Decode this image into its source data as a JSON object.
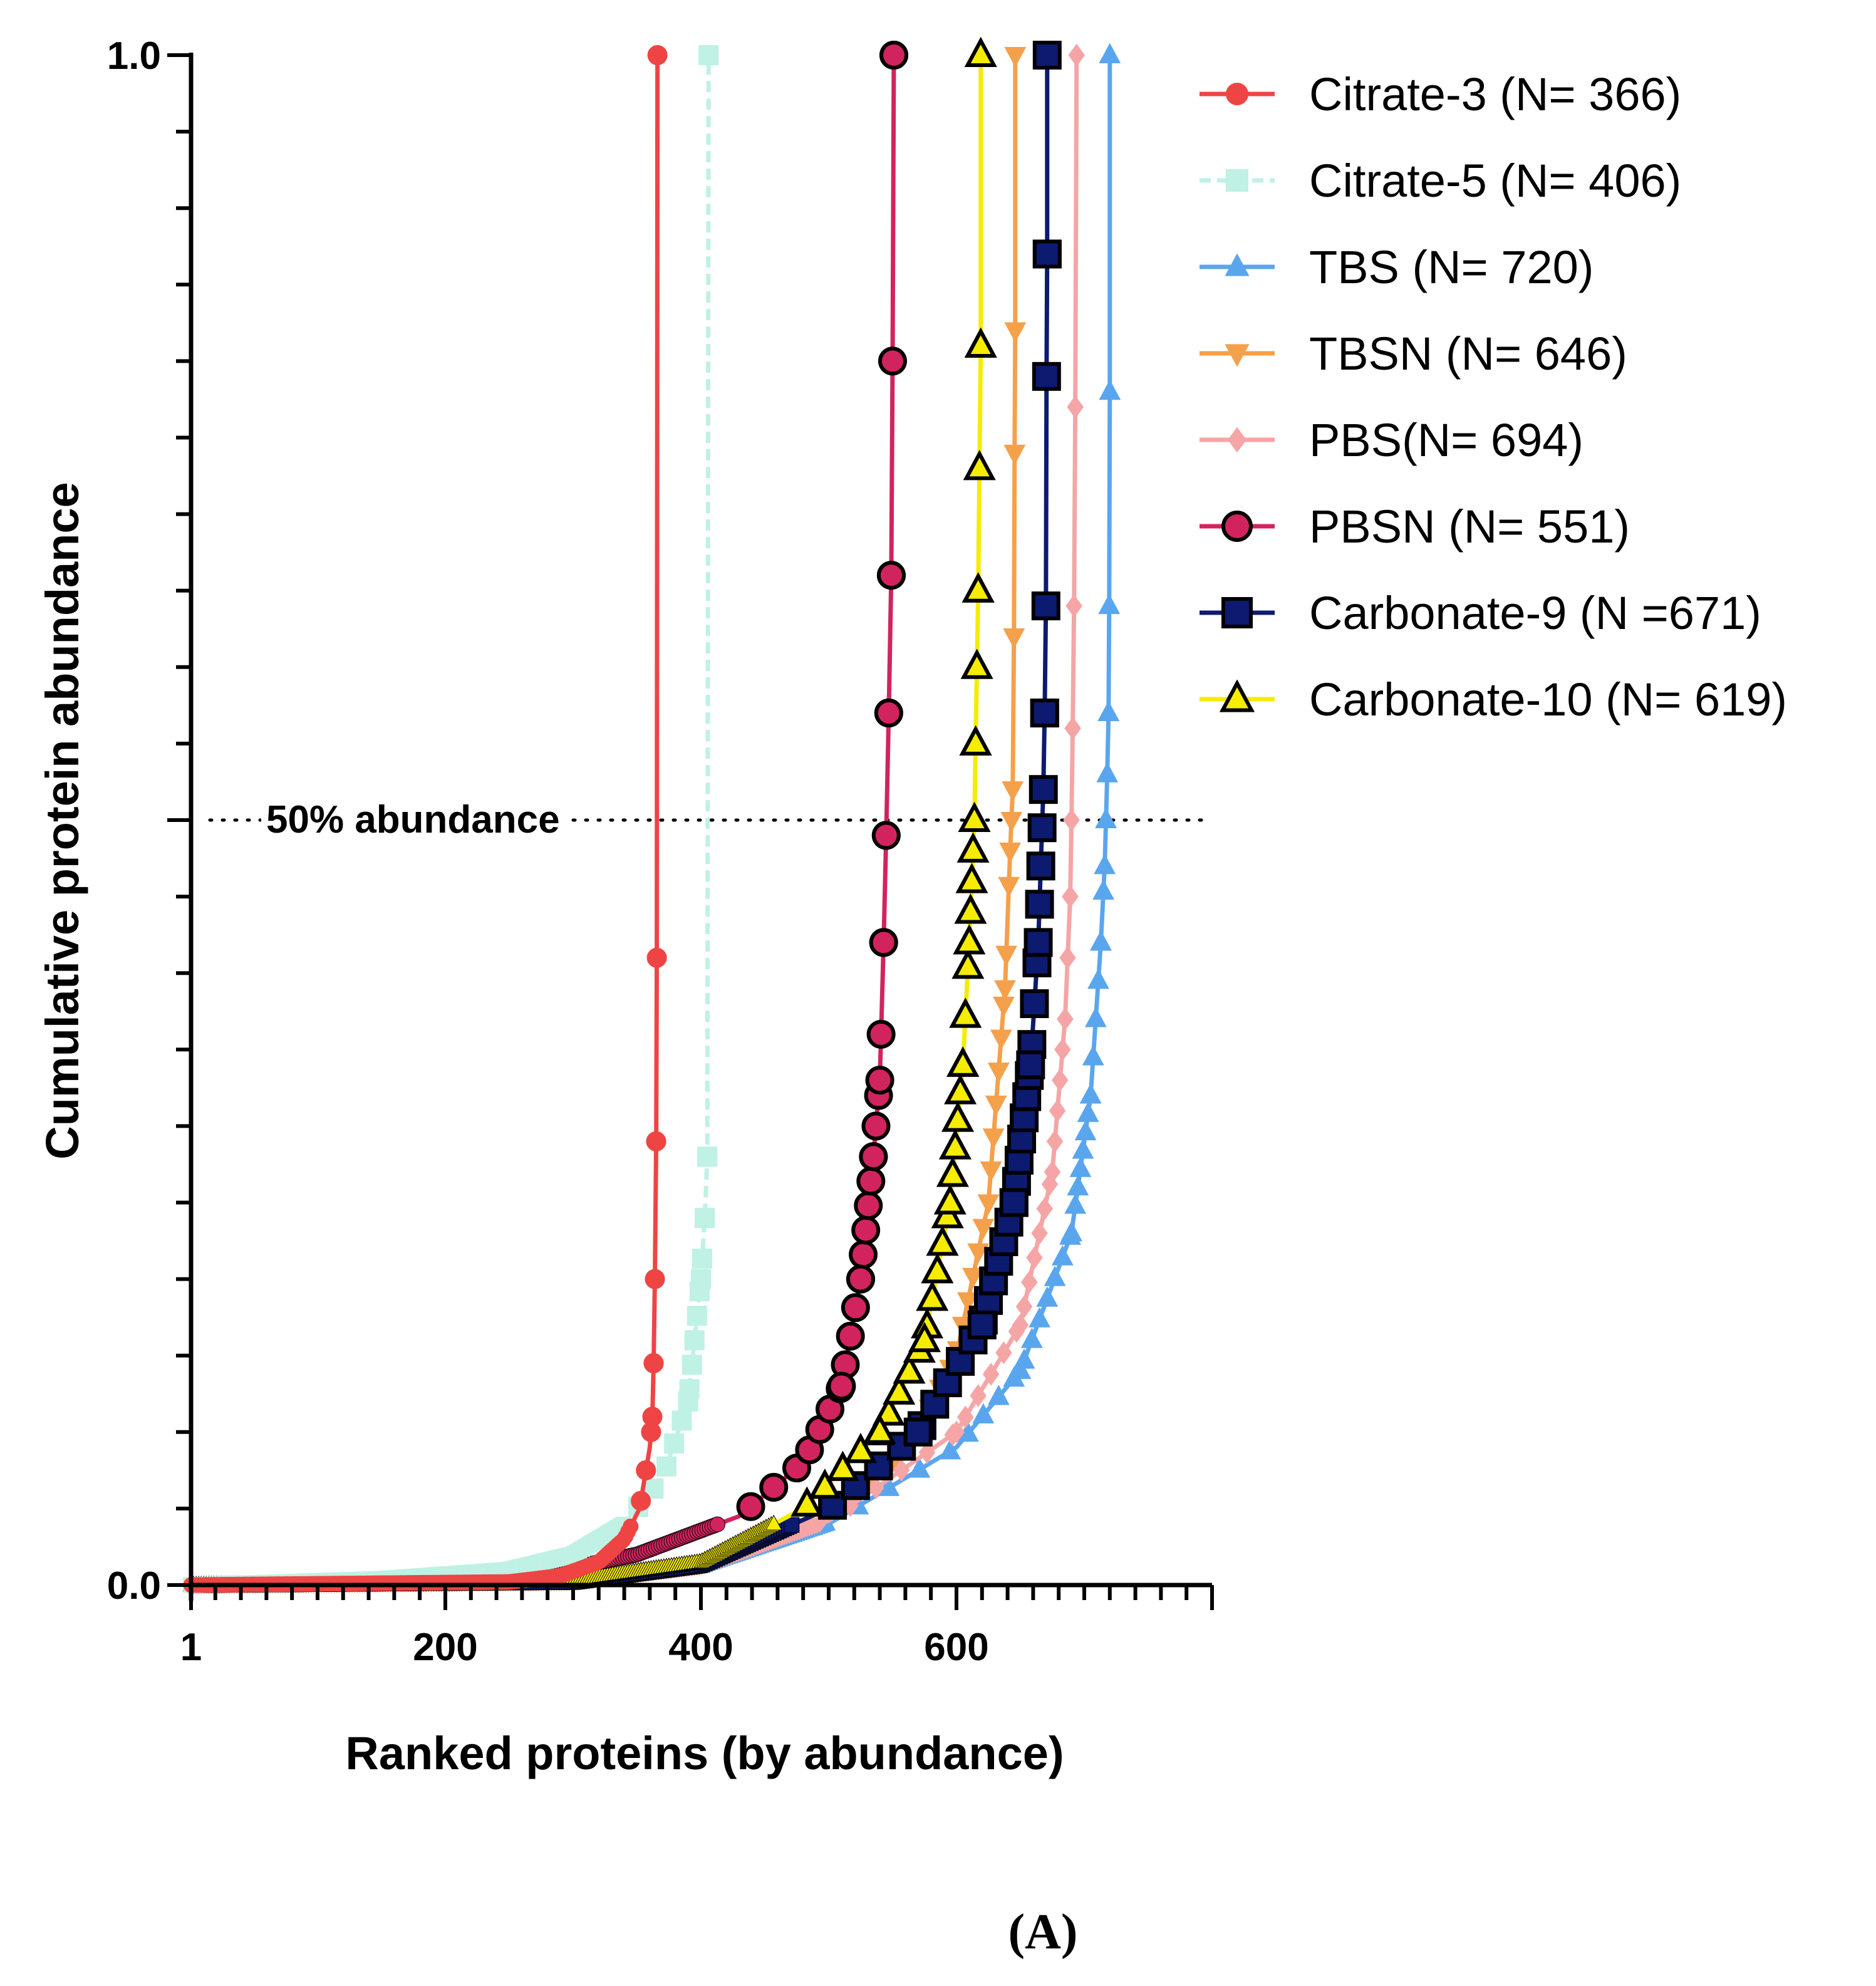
{
  "chart_data": {
    "type": "line",
    "title": "",
    "xlabel": "Ranked proteins (by abundance)",
    "ylabel": "Cumulative protein abundance",
    "xlim": [
      1,
      800
    ],
    "ylim": [
      0.0,
      1.0
    ],
    "x_ticks": [
      {
        "value": 1,
        "label": "1"
      },
      {
        "value": 200,
        "label": "200"
      },
      {
        "value": 400,
        "label": "400"
      },
      {
        "value": 600,
        "label": "600"
      }
    ],
    "y_ticks": [
      {
        "value": 0.0,
        "label": "0.0"
      },
      {
        "value": 1.0,
        "label": "1.0"
      }
    ],
    "reference_line": {
      "y": 0.5,
      "label": "50% abundance"
    },
    "legend_position": "top-right",
    "panel_label": "(A)",
    "series": [
      {
        "name": "Citrate-3 (N= 366)",
        "n": 366,
        "color": "#ef4444",
        "marker": "circle",
        "marker_outline": "#ef4444",
        "line_style": "solid",
        "curve": [
          [
            1,
            0.0
          ],
          [
            250,
            0.002
          ],
          [
            290,
            0.006
          ],
          [
            320,
            0.015
          ],
          [
            340,
            0.03
          ],
          [
            352,
            0.05
          ],
          [
            360,
            0.09
          ],
          [
            362,
            0.11
          ],
          [
            363,
            0.145
          ],
          [
            364,
            0.2
          ],
          [
            365,
            0.29
          ],
          [
            365.5,
            0.41
          ],
          [
            366,
            1.0
          ]
        ]
      },
      {
        "name": "Citrate-5 (N= 406)",
        "n": 406,
        "color": "#bff1e4",
        "marker": "square",
        "marker_outline": "#bff1e4",
        "line_style": "dashed",
        "curve": [
          [
            1,
            0.0
          ],
          [
            150,
            0.004
          ],
          [
            250,
            0.01
          ],
          [
            300,
            0.02
          ],
          [
            340,
            0.04
          ],
          [
            370,
            0.07
          ],
          [
            390,
            0.12
          ],
          [
            400,
            0.2
          ],
          [
            403,
            0.24
          ],
          [
            405,
            0.28
          ],
          [
            406,
            1.0
          ]
        ]
      },
      {
        "name": "TBS (N= 720)",
        "n": 720,
        "color": "#5aa6ee",
        "marker": "triangle-up",
        "marker_outline": "#5aa6ee",
        "line_style": "solid",
        "curve": [
          [
            1,
            0.0
          ],
          [
            300,
            0.002
          ],
          [
            400,
            0.012
          ],
          [
            500,
            0.04
          ],
          [
            600,
            0.09
          ],
          [
            650,
            0.14
          ],
          [
            690,
            0.23
          ],
          [
            705,
            0.32
          ],
          [
            713,
            0.42
          ],
          [
            716,
            0.47
          ],
          [
            717,
            0.5
          ],
          [
            718,
            0.53
          ],
          [
            719,
            0.57
          ],
          [
            719.5,
            0.64
          ],
          [
            720,
            0.78
          ],
          [
            720,
            1.0
          ]
        ]
      },
      {
        "name": "TBSN (N= 646)",
        "n": 646,
        "color": "#f5a04a",
        "marker": "triangle-down",
        "marker_outline": "#f5a04a",
        "line_style": "solid",
        "curve": [
          [
            1,
            0.0
          ],
          [
            300,
            0.002
          ],
          [
            400,
            0.013
          ],
          [
            500,
            0.045
          ],
          [
            560,
            0.085
          ],
          [
            600,
            0.15
          ],
          [
            625,
            0.25
          ],
          [
            638,
            0.39
          ],
          [
            642,
            0.48
          ],
          [
            644,
            0.52
          ],
          [
            645,
            0.62
          ],
          [
            645.5,
            0.74
          ],
          [
            646,
            0.82
          ],
          [
            646,
            1.0
          ]
        ]
      },
      {
        "name": "PBS(N= 694)",
        "n": 694,
        "color": "#f5a5a5",
        "marker": "diamond",
        "marker_outline": "#f5a5a5",
        "line_style": "solid",
        "curve": [
          [
            1,
            0.0
          ],
          [
            300,
            0.002
          ],
          [
            400,
            0.012
          ],
          [
            500,
            0.042
          ],
          [
            600,
            0.1
          ],
          [
            650,
            0.17
          ],
          [
            675,
            0.27
          ],
          [
            685,
            0.37
          ],
          [
            689,
            0.45
          ],
          [
            690,
            0.5
          ],
          [
            691,
            0.56
          ],
          [
            692,
            0.64
          ],
          [
            693,
            0.77
          ],
          [
            694,
            1.0
          ]
        ]
      },
      {
        "name": "PBSN (N= 551)",
        "n": 551,
        "color": "#d1245e",
        "marker": "circle",
        "marker_outline": "#000000",
        "line_style": "solid",
        "curve": [
          [
            1,
            0.0
          ],
          [
            250,
            0.003
          ],
          [
            350,
            0.02
          ],
          [
            430,
            0.045
          ],
          [
            480,
            0.08
          ],
          [
            510,
            0.13
          ],
          [
            525,
            0.2
          ],
          [
            535,
            0.28
          ],
          [
            540,
            0.33
          ],
          [
            543,
            0.42
          ],
          [
            545,
            0.49
          ],
          [
            547,
            0.57
          ],
          [
            549,
            0.66
          ],
          [
            550,
            0.8
          ],
          [
            551,
            1.0
          ]
        ]
      },
      {
        "name": "Carbonate-9 (N =671)",
        "n": 671,
        "color": "#0c1a70",
        "marker": "square",
        "marker_outline": "#000000",
        "line_style": "solid",
        "curve": [
          [
            1,
            0.0
          ],
          [
            300,
            0.002
          ],
          [
            400,
            0.013
          ],
          [
            500,
            0.05
          ],
          [
            570,
            0.1
          ],
          [
            620,
            0.17
          ],
          [
            645,
            0.25
          ],
          [
            658,
            0.34
          ],
          [
            664,
            0.42
          ],
          [
            666,
            0.47
          ],
          [
            668,
            0.52
          ],
          [
            669,
            0.57
          ],
          [
            670,
            0.64
          ],
          [
            670.5,
            0.79
          ],
          [
            671,
            0.87
          ],
          [
            671,
            1.0
          ]
        ]
      },
      {
        "name": "Carbonate-10 (N= 619)",
        "n": 619,
        "color": "#f5ec00",
        "marker": "triangle-up",
        "marker_outline": "#000000",
        "line_style": "solid",
        "curve": [
          [
            1,
            0.0
          ],
          [
            300,
            0.003
          ],
          [
            400,
            0.015
          ],
          [
            480,
            0.05
          ],
          [
            540,
            0.1
          ],
          [
            575,
            0.16
          ],
          [
            595,
            0.25
          ],
          [
            605,
            0.34
          ],
          [
            610,
            0.42
          ],
          [
            612,
            0.46
          ],
          [
            614,
            0.5
          ],
          [
            615,
            0.55
          ],
          [
            616,
            0.6
          ],
          [
            617,
            0.65
          ],
          [
            618,
            0.73
          ],
          [
            619,
            0.81
          ],
          [
            619,
            1.0
          ]
        ]
      }
    ]
  }
}
